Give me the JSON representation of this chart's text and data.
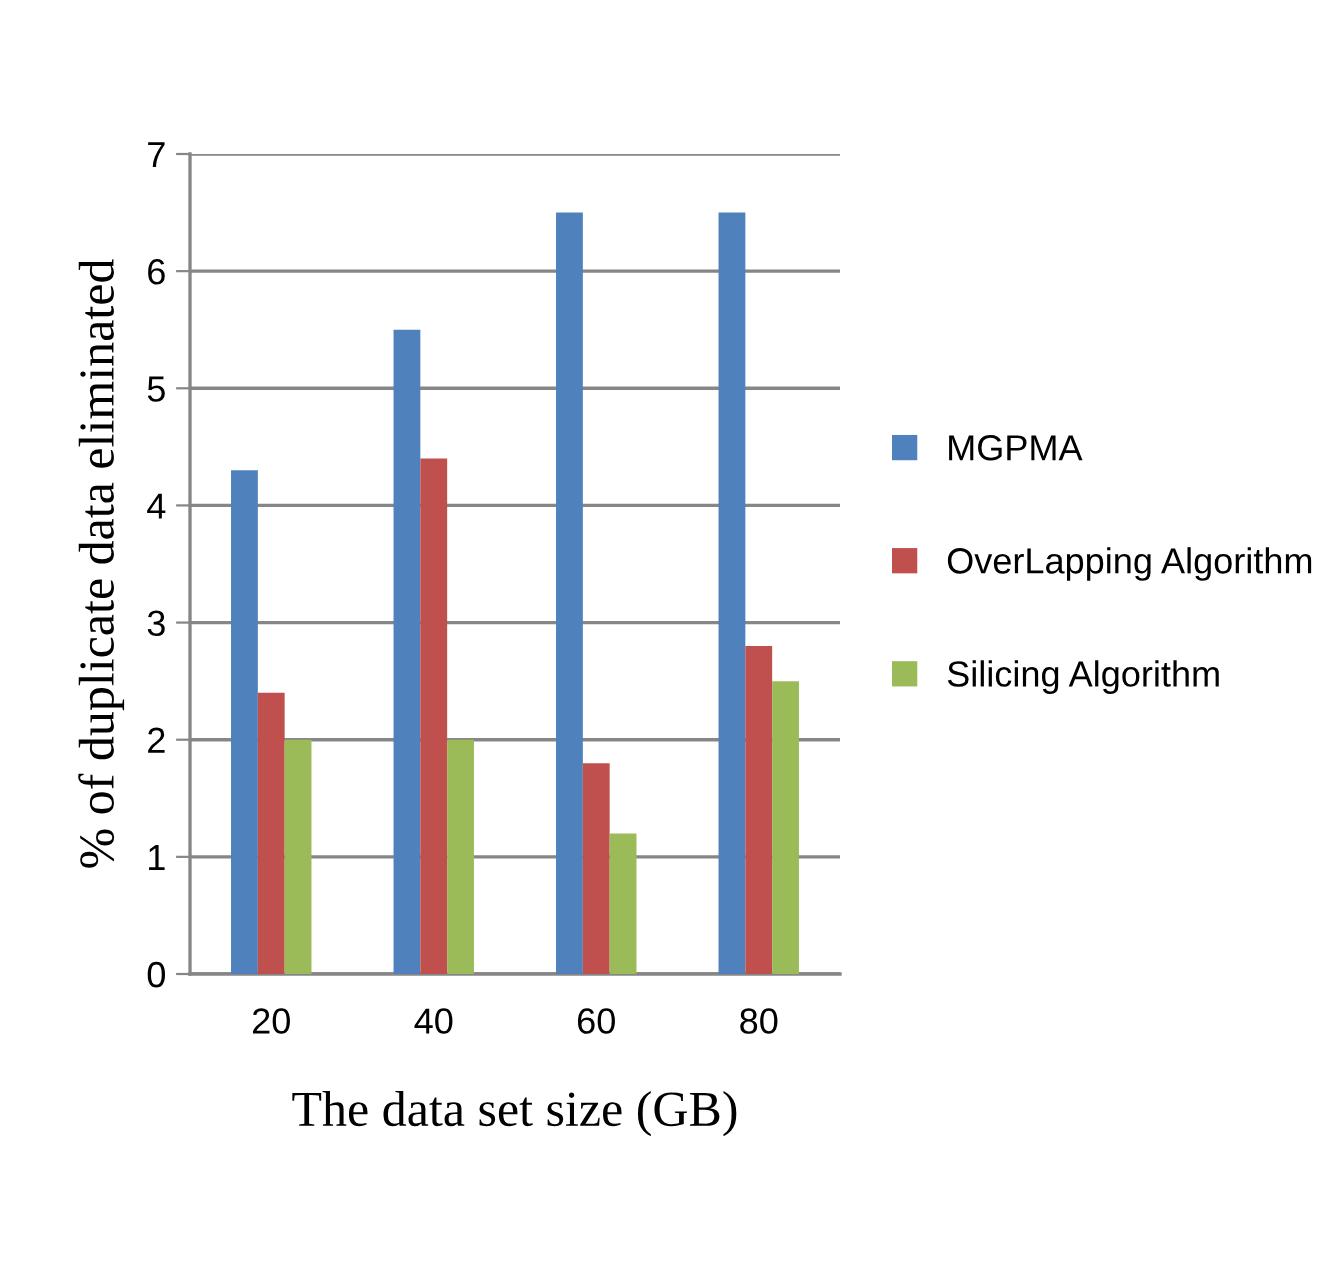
{
  "chart_data": {
    "type": "bar",
    "xlabel": "The data set size (GB)",
    "ylabel": "% of duplicate data eliminated",
    "categories": [
      "20",
      "40",
      "60",
      "80"
    ],
    "series": [
      {
        "name": "MGPMA",
        "color": "#4f81bd",
        "values": [
          4.3,
          5.5,
          6.5,
          6.5
        ]
      },
      {
        "name": "OverLapping Algorithm",
        "color": "#c0504d",
        "values": [
          2.4,
          4.4,
          1.8,
          2.8
        ]
      },
      {
        "name": "Silicing Algorithm",
        "color": "#9bbb59",
        "values": [
          2.0,
          2.0,
          1.2,
          2.5
        ]
      }
    ],
    "ylim": [
      0,
      7
    ],
    "yticks": [
      0,
      1,
      2,
      3,
      4,
      5,
      6,
      7
    ],
    "grid": "y",
    "legend": "right"
  }
}
